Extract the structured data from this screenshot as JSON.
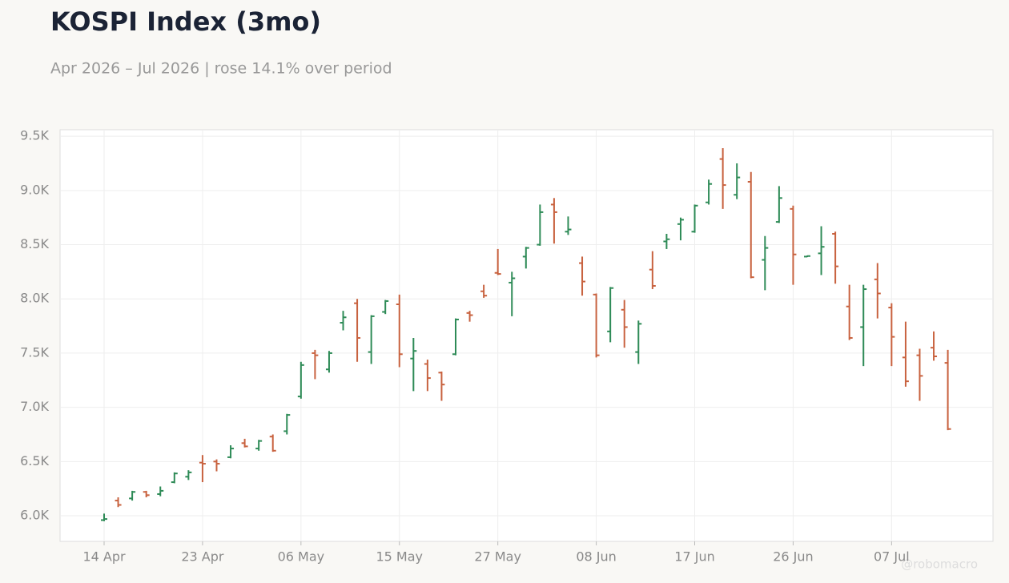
{
  "chart_data": {
    "type": "ohlc",
    "title": "KOSPI Index (3mo)",
    "subtitle": "Apr 2026 – Jul 2026 | rose 14.1% over period",
    "watermark": "@robomacro",
    "categories": [
      "14 Apr",
      null,
      null,
      null,
      null,
      null,
      null,
      "23 Apr",
      null,
      null,
      null,
      null,
      null,
      null,
      "06 May",
      null,
      null,
      null,
      null,
      null,
      null,
      "15 May",
      null,
      null,
      null,
      null,
      null,
      null,
      "27 May",
      null,
      null,
      null,
      null,
      null,
      null,
      "08 Jun",
      null,
      null,
      null,
      null,
      null,
      null,
      "17 Jun",
      null,
      null,
      null,
      null,
      null,
      null,
      "26 Jun",
      null,
      null,
      null,
      null,
      null,
      null,
      "07 Jul",
      null,
      null,
      null,
      null
    ],
    "open": [
      5960,
      6140,
      6160,
      6220,
      6200,
      6310,
      6360,
      6490,
      6500,
      6540,
      6670,
      6620,
      6730,
      6780,
      7100,
      7500,
      7350,
      7780,
      7960,
      7510,
      7880,
      7950,
      7450,
      7400,
      7320,
      7490,
      7870,
      8070,
      8240,
      8150,
      8390,
      8500,
      8870,
      8620,
      8330,
      8040,
      7700,
      7900,
      7510,
      8270,
      8530,
      8690,
      8620,
      8890,
      9290,
      8960,
      9080,
      8360,
      8710,
      8830,
      8390,
      8420,
      8600,
      7930,
      7740,
      8180,
      7920,
      7460,
      7480,
      7550,
      7410
    ],
    "high": [
      6020,
      6170,
      6230,
      6230,
      6270,
      6400,
      6420,
      6560,
      6520,
      6650,
      6710,
      6700,
      6750,
      6940,
      7420,
      7530,
      7520,
      7890,
      8000,
      7850,
      7990,
      8040,
      7640,
      7440,
      7330,
      7820,
      7890,
      8130,
      8460,
      8250,
      8480,
      8870,
      8930,
      8760,
      8390,
      8050,
      8110,
      7990,
      7800,
      8440,
      8600,
      8750,
      8870,
      9100,
      9390,
      9250,
      9170,
      8580,
      9040,
      8860,
      8400,
      8670,
      8620,
      8130,
      8130,
      8330,
      7960,
      7790,
      7540,
      7700,
      7530
    ],
    "low": [
      5950,
      6080,
      6140,
      6170,
      6180,
      6300,
      6330,
      6310,
      6410,
      6530,
      6630,
      6600,
      6590,
      6750,
      7080,
      7260,
      7320,
      7710,
      7420,
      7400,
      7860,
      7370,
      7150,
      7150,
      7060,
      7480,
      7790,
      8010,
      8220,
      7840,
      8280,
      8490,
      8510,
      8590,
      8030,
      7460,
      7600,
      7550,
      7400,
      8090,
      8460,
      8540,
      8610,
      8870,
      8830,
      8920,
      8190,
      8080,
      8700,
      8130,
      8385,
      8220,
      8140,
      7620,
      7380,
      7820,
      7380,
      7190,
      7060,
      7430,
      6790
    ],
    "close": [
      5970,
      6100,
      6220,
      6190,
      6230,
      6390,
      6400,
      6480,
      6480,
      6620,
      6640,
      6690,
      6600,
      6930,
      7390,
      7480,
      7500,
      7830,
      7640,
      7840,
      7980,
      7490,
      7520,
      7270,
      7210,
      7810,
      7850,
      8030,
      8230,
      8190,
      8470,
      8800,
      8800,
      8640,
      8160,
      7480,
      8100,
      7740,
      7770,
      8120,
      8550,
      8730,
      8860,
      9060,
      9050,
      9120,
      8200,
      8470,
      8930,
      8410,
      8395,
      8480,
      8300,
      7640,
      8090,
      8050,
      7650,
      7240,
      7290,
      7470,
      6800
    ],
    "up_color": "#2e8b57",
    "down_color": "#c8623f",
    "ylim": [
      5764,
      9560
    ],
    "yticks": [
      {
        "value": 6000,
        "label": "6.0K"
      },
      {
        "value": 6500,
        "label": "6.5K"
      },
      {
        "value": 7000,
        "label": "7.0K"
      },
      {
        "value": 7500,
        "label": "7.5K"
      },
      {
        "value": 8000,
        "label": "8.0K"
      },
      {
        "value": 8500,
        "label": "8.5K"
      },
      {
        "value": 9000,
        "label": "9.0K"
      },
      {
        "value": 9500,
        "label": "9.5K"
      }
    ],
    "grid": true
  }
}
